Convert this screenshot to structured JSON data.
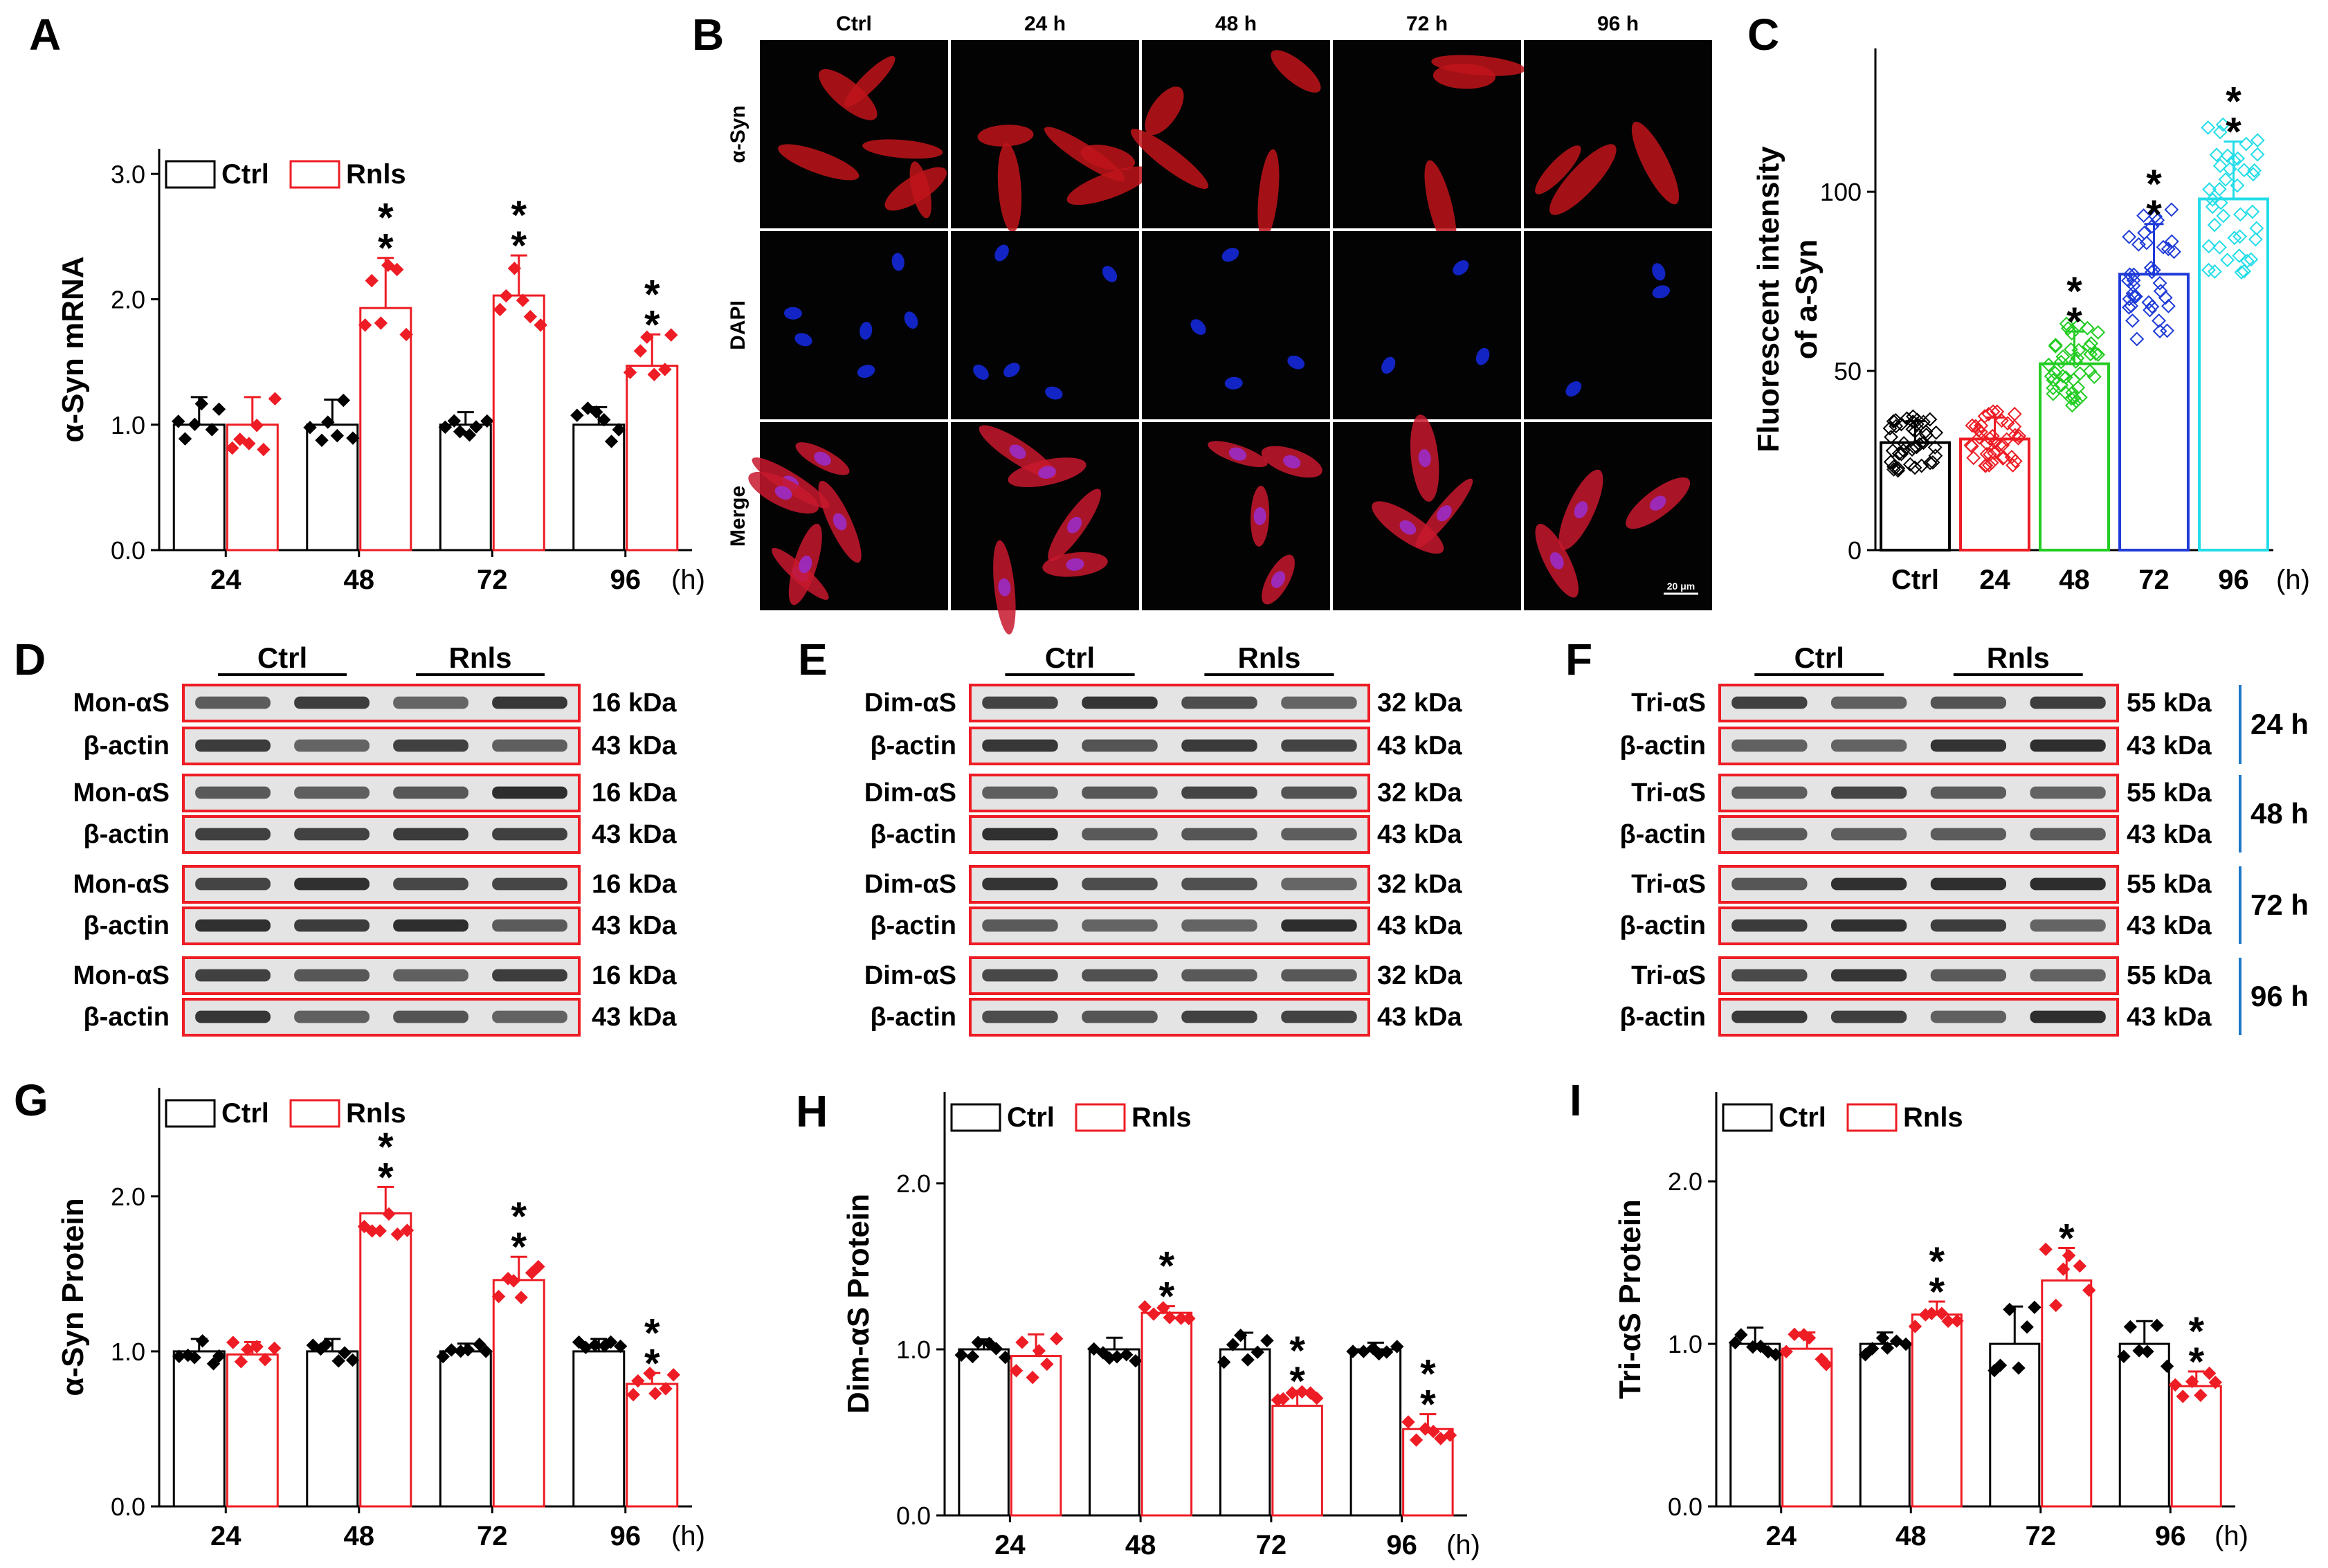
{
  "panel_labels": [
    "A",
    "B",
    "C",
    "D",
    "E",
    "F",
    "G",
    "H",
    "I"
  ],
  "legend": {
    "ctrl": "Ctrl",
    "rnls": "Rnls"
  },
  "colors": {
    "ctrl": "#000000",
    "rnls": "#ee1c24",
    "c48": "#22cc22",
    "c72": "#1f3bd8",
    "c96": "#22dde8",
    "blot_box": "#ee1c24",
    "time_bar": "#1e78c8"
  },
  "hour_unit": "(h)",
  "chart_data": [
    {
      "id": "A",
      "type": "bar",
      "ylabel": "α-Syn mRNA",
      "categories": [
        "24",
        "48",
        "72",
        "96"
      ],
      "ylim": [
        0,
        3.2
      ],
      "yticks": [
        0,
        1,
        2,
        3
      ],
      "ytick_labels": [
        "0.0",
        "1.0",
        "2.0",
        "3.0"
      ],
      "series": [
        {
          "name": "Ctrl",
          "values": [
            1.0,
            1.0,
            1.0,
            1.0
          ],
          "errors": [
            0.22,
            0.2,
            0.1,
            0.14
          ]
        },
        {
          "name": "Rnls",
          "values": [
            1.0,
            1.93,
            2.03,
            1.47
          ],
          "errors": [
            0.22,
            0.4,
            0.32,
            0.25
          ]
        }
      ],
      "significance": [
        "",
        "**",
        "**",
        "**"
      ]
    },
    {
      "id": "C",
      "type": "bar",
      "ylabel_lines": [
        "Fluorescent intensity",
        "of a-Syn"
      ],
      "categories": [
        "Ctrl",
        "24",
        "48",
        "72",
        "96"
      ],
      "ylim": [
        0,
        140
      ],
      "yticks": [
        0,
        50,
        100
      ],
      "ytick_labels": [
        "0",
        "50",
        "100"
      ],
      "values": [
        30,
        31,
        52,
        77,
        98
      ],
      "errors": [
        6,
        6,
        9,
        14,
        16
      ],
      "significance": [
        "",
        "",
        "**",
        "**",
        "**"
      ]
    },
    {
      "id": "G",
      "type": "bar",
      "ylabel": "α-Syn Protein",
      "categories": [
        "24",
        "48",
        "72",
        "96"
      ],
      "ylim": [
        0,
        2.7
      ],
      "yticks": [
        0,
        1,
        2
      ],
      "ytick_labels": [
        "0.0",
        "1.0",
        "2.0"
      ],
      "series": [
        {
          "name": "Ctrl",
          "values": [
            1.0,
            1.0,
            1.0,
            1.0
          ],
          "errors": [
            0.08,
            0.08,
            0.05,
            0.08
          ]
        },
        {
          "name": "Rnls",
          "values": [
            0.98,
            1.89,
            1.46,
            0.79
          ],
          "errors": [
            0.08,
            0.17,
            0.15,
            0.07
          ]
        }
      ],
      "significance": [
        "",
        "**",
        "**",
        "**"
      ]
    },
    {
      "id": "H",
      "type": "bar",
      "ylabel": "Dim-αS Protein",
      "categories": [
        "24",
        "48",
        "72",
        "96"
      ],
      "ylim": [
        0,
        2.55
      ],
      "yticks": [
        0,
        1,
        2
      ],
      "ytick_labels": [
        "0.0",
        "1.0",
        "2.0"
      ],
      "series": [
        {
          "name": "Ctrl",
          "values": [
            1.0,
            1.0,
            1.0,
            1.0
          ],
          "errors": [
            0.06,
            0.07,
            0.1,
            0.04
          ]
        },
        {
          "name": "Rnls",
          "values": [
            0.96,
            1.22,
            0.66,
            0.52
          ],
          "errors": [
            0.13,
            0.04,
            0.09,
            0.09
          ]
        }
      ],
      "significance": [
        "",
        "**",
        "**",
        "**"
      ]
    },
    {
      "id": "I",
      "type": "bar",
      "ylabel": "Tri-αS Protein",
      "categories": [
        "24",
        "48",
        "72",
        "96"
      ],
      "ylim": [
        0,
        2.55
      ],
      "yticks": [
        0,
        1,
        2
      ],
      "ytick_labels": [
        "0.0",
        "1.0",
        "2.0"
      ],
      "series": [
        {
          "name": "Ctrl",
          "values": [
            1.0,
            1.0,
            1.0,
            1.0
          ],
          "errors": [
            0.1,
            0.07,
            0.23,
            0.14
          ]
        },
        {
          "name": "Rnls",
          "values": [
            0.97,
            1.18,
            1.39,
            0.74
          ],
          "errors": [
            0.1,
            0.08,
            0.2,
            0.09
          ]
        }
      ],
      "significance": [
        "",
        "**",
        "*",
        "**"
      ]
    }
  ],
  "micro": {
    "columns": [
      "Ctrl",
      "24 h",
      "48 h",
      "72 h",
      "96 h"
    ],
    "rows": [
      "α-Syn",
      "DAPI",
      "Merge"
    ],
    "scale_bar": "20 μm"
  },
  "blots": {
    "group_ctrl": "Ctrl",
    "group_rnls": "Rnls",
    "D": {
      "rows": [
        [
          "Mon-αS",
          "16 kDa"
        ],
        [
          "β-actin",
          "43 kDa"
        ],
        [
          "Mon-αS",
          "16 kDa"
        ],
        [
          "β-actin",
          "43 kDa"
        ],
        [
          "Mon-αS",
          "16 kDa"
        ],
        [
          "β-actin",
          "43 kDa"
        ],
        [
          "Mon-αS",
          "16 kDa"
        ],
        [
          "β-actin",
          "43 kDa"
        ]
      ]
    },
    "E": {
      "rows": [
        [
          "Dim-αS",
          "32 kDa"
        ],
        [
          "β-actin",
          "43 kDa"
        ],
        [
          "Dim-αS",
          "32 kDa"
        ],
        [
          "β-actin",
          "43 kDa"
        ],
        [
          "Dim-αS",
          "32 kDa"
        ],
        [
          "β-actin",
          "43 kDa"
        ],
        [
          "Dim-αS",
          "32 kDa"
        ],
        [
          "β-actin",
          "43 kDa"
        ]
      ]
    },
    "F": {
      "rows": [
        [
          "Tri-αS",
          "55 kDa"
        ],
        [
          "β-actin",
          "43 kDa"
        ],
        [
          "Tri-αS",
          "55 kDa"
        ],
        [
          "β-actin",
          "43 kDa"
        ],
        [
          "Tri-αS",
          "55 kDa"
        ],
        [
          "β-actin",
          "43 kDa"
        ],
        [
          "Tri-αS",
          "55 kDa"
        ],
        [
          "β-actin",
          "43 kDa"
        ]
      ],
      "times": [
        "24 h",
        "48 h",
        "72 h",
        "96 h"
      ]
    }
  }
}
